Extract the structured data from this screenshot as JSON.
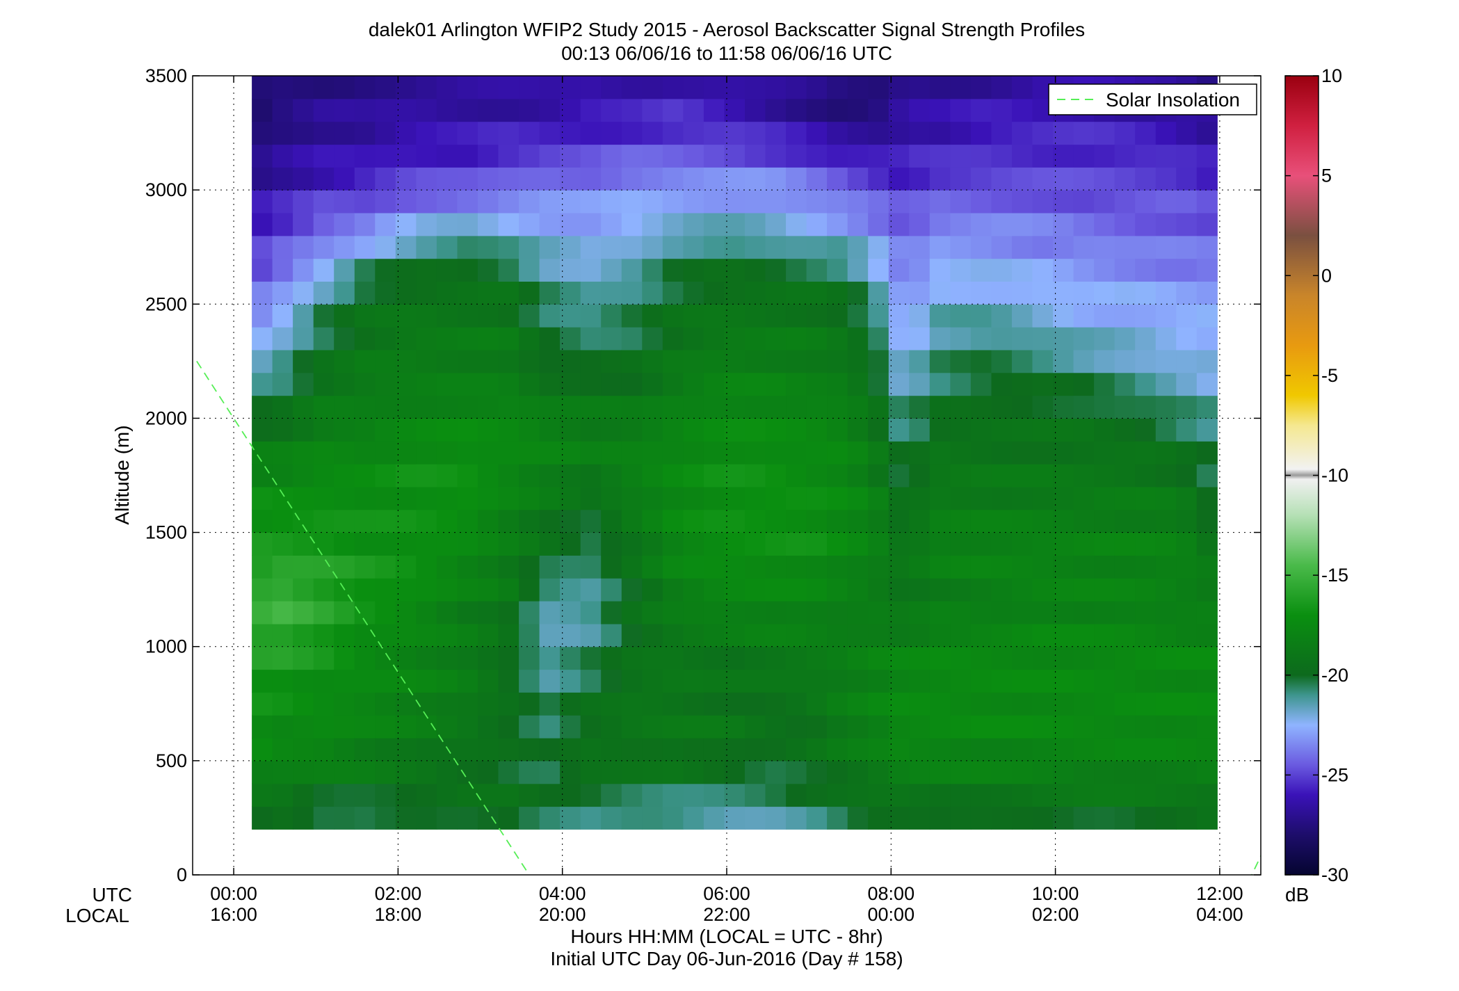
{
  "chart_data": {
    "type": "heatmap",
    "title": "dalek01 Arlington WFIP2 Study 2015 - Aerosol Backscatter Signal Strength Profiles",
    "subtitle": "00:13 06/06/16 to 11:58 06/06/16  UTC",
    "xlabel": "Hours HH:MM  (LOCAL = UTC - 8hr)",
    "xlabel2": "Initial UTC Day 06-Jun-2016 (Day # 158)",
    "ylabel": "Altitude (m)",
    "xrow_names": [
      "UTC",
      "LOCAL"
    ],
    "x_range_hours": [
      -0.5,
      12.5
    ],
    "ylim": [
      0,
      3500
    ],
    "x_ticks": [
      {
        "hour": 0,
        "utc": "00:00",
        "local": "16:00"
      },
      {
        "hour": 2,
        "utc": "02:00",
        "local": "18:00"
      },
      {
        "hour": 4,
        "utc": "04:00",
        "local": "20:00"
      },
      {
        "hour": 6,
        "utc": "06:00",
        "local": "22:00"
      },
      {
        "hour": 8,
        "utc": "08:00",
        "local": "00:00"
      },
      {
        "hour": 10,
        "utc": "10:00",
        "local": "02:00"
      },
      {
        "hour": 12,
        "utc": "12:00",
        "local": "04:00"
      }
    ],
    "y_ticks": [
      0,
      500,
      1000,
      1500,
      2000,
      2500,
      3000,
      3500
    ],
    "grid": true,
    "legend": {
      "position": "top-right",
      "entries": [
        {
          "name": "Solar Insolation",
          "color": "#55ee55",
          "style": "dashed"
        }
      ]
    },
    "solar_insolation_lines": [
      {
        "x_hours": [
          -0.45,
          3.65
        ],
        "y_m": [
          2250,
          -30
        ]
      },
      {
        "x_hours": [
          12.35,
          12.55
        ],
        "y_m": [
          -30,
          120
        ]
      }
    ],
    "colorbar": {
      "label": "dB",
      "range": [
        -30,
        10
      ],
      "ticks": [
        10,
        5,
        0,
        -5,
        -10,
        -15,
        -20,
        -25,
        -30
      ],
      "stops": [
        {
          "v": -30,
          "c": "#050530"
        },
        {
          "v": -28,
          "c": "#1d0d6a"
        },
        {
          "v": -26,
          "c": "#3a12b8"
        },
        {
          "v": -24.5,
          "c": "#6a5ae0"
        },
        {
          "v": -22.5,
          "c": "#8fb4ff"
        },
        {
          "v": -21,
          "c": "#3e958e"
        },
        {
          "v": -20,
          "c": "#0d6a1d"
        },
        {
          "v": -17,
          "c": "#0a8f10"
        },
        {
          "v": -14.5,
          "c": "#4aba4a"
        },
        {
          "v": -12,
          "c": "#b5e0b5"
        },
        {
          "v": -10.2,
          "c": "#f0f0f0"
        },
        {
          "v": -10,
          "c": "#9a9a9a"
        },
        {
          "v": -9.7,
          "c": "#f2f2f2"
        },
        {
          "v": -7.5,
          "c": "#f5e890"
        },
        {
          "v": -6,
          "c": "#f0c800"
        },
        {
          "v": -3.5,
          "c": "#e89a10"
        },
        {
          "v": -1,
          "c": "#c9852a"
        },
        {
          "v": 2,
          "c": "#7a5040"
        },
        {
          "v": 5,
          "c": "#e8507a"
        },
        {
          "v": 7.5,
          "c": "#d02040"
        },
        {
          "v": 10,
          "c": "#9a0010"
        }
      ]
    },
    "grid_data": {
      "x_start_hours": 0.22,
      "x_end_hours": 11.97,
      "y_start_m": 200,
      "y_end_m": 3500,
      "keyframes_hours": [
        0.22,
        0.6,
        1.1,
        1.6,
        2.2,
        2.8,
        3.3,
        3.8,
        4.3,
        4.9,
        5.4,
        6.0,
        6.5,
        7.0,
        7.4,
        7.8,
        8.0,
        8.2,
        8.6,
        9.2,
        9.8,
        10.4,
        11.0,
        11.5,
        11.97
      ],
      "keyframes_m": [
        200,
        300,
        400,
        500,
        650,
        800,
        1000,
        1150,
        1300,
        1450,
        1600,
        1800,
        2000,
        2150,
        2300,
        2450,
        2600,
        2750,
        2900,
        3050,
        3200,
        3350,
        3500
      ],
      "values_db": [
        [
          -20.5,
          -20.0,
          -21.0,
          -21.0,
          -20.0,
          -20.0,
          -19.5,
          -20.5,
          -21.5,
          -21.5,
          -21.5,
          -22.0,
          -21.5,
          -21.0,
          -20.5,
          -20.0,
          -20.5,
          -20.5,
          -21.0,
          -20.5,
          -20.0,
          -20.0,
          -20.0,
          -20.0,
          -19.5
        ],
        [
          -19.5,
          -19.5,
          -20.5,
          -20.5,
          -20.0,
          -19.5,
          -19.5,
          -20.5,
          -21.0,
          -21.0,
          -21.0,
          -21.0,
          -21.0,
          -20.5,
          -20.0,
          -19.5,
          -19.5,
          -19.5,
          -19.5,
          -19.5,
          -19.5,
          -19.5,
          -19.5,
          -19.5,
          -19.5
        ],
        [
          -18.5,
          -18.5,
          -19.0,
          -19.0,
          -19.5,
          -19.5,
          -19.5,
          -20.0,
          -19.0,
          -19.5,
          -20.0,
          -20.5,
          -20.5,
          -20.0,
          -19.5,
          -19.0,
          -18.5,
          -18.5,
          -18.5,
          -18.5,
          -18.5,
          -18.5,
          -18.5,
          -18.5,
          -18.5
        ],
        [
          -17.5,
          -18.0,
          -18.0,
          -18.5,
          -19.0,
          -19.5,
          -20.0,
          -20.5,
          -19.5,
          -19.5,
          -19.0,
          -19.5,
          -20.0,
          -19.5,
          -19.0,
          -18.5,
          -18.0,
          -18.0,
          -18.0,
          -18.0,
          -18.0,
          -18.0,
          -18.0,
          -18.0,
          -18.0
        ],
        [
          -17.0,
          -17.5,
          -17.5,
          -18.0,
          -18.5,
          -19.0,
          -19.5,
          -20.5,
          -19.5,
          -19.0,
          -19.0,
          -19.0,
          -19.5,
          -19.5,
          -18.5,
          -18.0,
          -17.5,
          -17.5,
          -17.5,
          -17.5,
          -17.5,
          -17.5,
          -17.5,
          -17.5,
          -17.5
        ],
        [
          -17.0,
          -17.0,
          -17.5,
          -17.5,
          -18.0,
          -18.5,
          -19.5,
          -21.0,
          -20.0,
          -19.0,
          -19.0,
          -19.5,
          -19.5,
          -19.0,
          -18.5,
          -18.0,
          -17.5,
          -17.5,
          -17.5,
          -17.5,
          -17.5,
          -17.5,
          -17.5,
          -17.5,
          -17.5
        ],
        [
          -16.0,
          -16.0,
          -16.5,
          -17.5,
          -18.0,
          -18.5,
          -19.5,
          -21.5,
          -21.0,
          -19.5,
          -19.0,
          -19.0,
          -18.5,
          -18.5,
          -18.5,
          -18.0,
          -18.0,
          -18.0,
          -17.5,
          -17.5,
          -17.5,
          -17.5,
          -17.5,
          -17.5,
          -17.5
        ],
        [
          -15.5,
          -15.0,
          -16.0,
          -17.0,
          -17.5,
          -18.5,
          -19.0,
          -21.5,
          -21.5,
          -19.5,
          -18.5,
          -18.0,
          -18.0,
          -18.0,
          -18.5,
          -18.5,
          -19.0,
          -19.0,
          -18.5,
          -18.5,
          -18.0,
          -18.0,
          -18.0,
          -18.5,
          -18.5
        ],
        [
          -16.0,
          -15.5,
          -16.0,
          -16.5,
          -17.0,
          -18.0,
          -18.5,
          -20.5,
          -21.0,
          -19.5,
          -18.0,
          -17.5,
          -17.5,
          -17.5,
          -18.0,
          -18.5,
          -19.0,
          -19.0,
          -18.5,
          -18.0,
          -18.0,
          -18.0,
          -18.0,
          -18.0,
          -18.5
        ],
        [
          -16.5,
          -16.5,
          -16.5,
          -17.0,
          -17.0,
          -17.5,
          -18.5,
          -19.5,
          -20.5,
          -19.0,
          -17.5,
          -17.0,
          -17.0,
          -17.0,
          -17.5,
          -18.0,
          -19.0,
          -19.0,
          -18.0,
          -18.0,
          -18.0,
          -18.0,
          -18.0,
          -18.0,
          -19.5
        ],
        [
          -17.0,
          -17.0,
          -17.0,
          -17.0,
          -17.0,
          -17.0,
          -18.0,
          -19.0,
          -20.0,
          -18.5,
          -17.5,
          -17.0,
          -17.0,
          -17.0,
          -17.5,
          -18.0,
          -19.5,
          -19.5,
          -18.5,
          -18.5,
          -18.5,
          -18.5,
          -18.5,
          -18.5,
          -20.5
        ],
        [
          -18.0,
          -18.0,
          -17.5,
          -17.5,
          -17.0,
          -17.0,
          -17.5,
          -18.0,
          -18.5,
          -18.0,
          -17.5,
          -17.0,
          -17.0,
          -17.5,
          -17.5,
          -18.5,
          -20.0,
          -20.0,
          -19.0,
          -19.0,
          -19.0,
          -19.0,
          -19.0,
          -19.5,
          -20.5
        ],
        [
          -20.0,
          -19.5,
          -18.5,
          -18.5,
          -18.0,
          -17.5,
          -17.5,
          -18.0,
          -18.5,
          -18.5,
          -18.0,
          -17.5,
          -17.5,
          -17.5,
          -18.0,
          -19.0,
          -20.5,
          -21.0,
          -19.5,
          -19.5,
          -19.5,
          -19.5,
          -20.0,
          -20.5,
          -21.0
        ],
        [
          -21.0,
          -20.5,
          -19.0,
          -18.5,
          -18.5,
          -18.5,
          -18.5,
          -19.5,
          -19.5,
          -19.5,
          -18.5,
          -18.0,
          -18.0,
          -18.5,
          -18.5,
          -19.5,
          -21.5,
          -21.5,
          -20.5,
          -20.0,
          -20.0,
          -20.5,
          -21.0,
          -21.5,
          -22.0
        ],
        [
          -22.5,
          -21.5,
          -20.0,
          -19.0,
          -18.5,
          -18.5,
          -18.5,
          -20.0,
          -20.5,
          -20.0,
          -19.0,
          -18.5,
          -18.5,
          -18.5,
          -19.0,
          -20.0,
          -22.0,
          -22.5,
          -21.0,
          -20.5,
          -21.0,
          -21.5,
          -22.0,
          -22.5,
          -22.5
        ],
        [
          -23.5,
          -22.5,
          -20.5,
          -19.5,
          -19.0,
          -19.0,
          -19.0,
          -20.5,
          -21.0,
          -20.5,
          -19.5,
          -19.0,
          -19.0,
          -19.0,
          -19.5,
          -20.5,
          -22.5,
          -23.0,
          -21.5,
          -21.5,
          -22.0,
          -22.5,
          -22.5,
          -22.5,
          -22.5
        ],
        [
          -24.5,
          -23.5,
          -22.0,
          -20.0,
          -19.5,
          -19.5,
          -19.5,
          -21.0,
          -21.5,
          -21.0,
          -20.0,
          -19.5,
          -19.5,
          -19.5,
          -20.0,
          -21.5,
          -23.0,
          -23.5,
          -22.5,
          -22.5,
          -22.5,
          -23.0,
          -23.0,
          -23.5,
          -23.5
        ],
        [
          -25.5,
          -24.5,
          -23.5,
          -22.5,
          -21.0,
          -20.5,
          -21.0,
          -22.0,
          -22.5,
          -22.0,
          -21.0,
          -20.5,
          -21.0,
          -21.5,
          -21.5,
          -22.5,
          -23.5,
          -24.0,
          -23.0,
          -23.0,
          -23.5,
          -23.5,
          -24.0,
          -24.0,
          -24.0
        ],
        [
          -26.0,
          -25.5,
          -24.5,
          -24.5,
          -23.5,
          -23.0,
          -23.0,
          -23.0,
          -23.0,
          -22.5,
          -22.5,
          -22.5,
          -22.5,
          -23.0,
          -23.5,
          -24.0,
          -24.5,
          -24.5,
          -24.0,
          -24.0,
          -24.0,
          -24.5,
          -24.5,
          -24.5,
          -25.0
        ],
        [
          -27.0,
          -26.5,
          -26.0,
          -25.5,
          -25.0,
          -25.0,
          -24.5,
          -24.0,
          -24.0,
          -23.5,
          -23.5,
          -23.5,
          -23.5,
          -24.0,
          -24.5,
          -25.0,
          -25.5,
          -25.5,
          -25.0,
          -25.0,
          -25.0,
          -25.0,
          -25.0,
          -25.0,
          -25.5
        ],
        [
          -27.5,
          -27.0,
          -26.5,
          -26.5,
          -26.0,
          -26.0,
          -25.5,
          -25.5,
          -25.5,
          -25.0,
          -25.0,
          -25.0,
          -25.5,
          -26.0,
          -26.5,
          -26.5,
          -26.5,
          -26.0,
          -26.0,
          -25.5,
          -25.5,
          -25.5,
          -25.5,
          -26.0,
          -26.5
        ],
        [
          -28.0,
          -27.5,
          -27.0,
          -27.0,
          -26.5,
          -26.5,
          -26.5,
          -26.5,
          -26.0,
          -26.0,
          -25.5,
          -26.0,
          -26.5,
          -27.0,
          -27.5,
          -27.5,
          -27.0,
          -26.5,
          -26.5,
          -26.0,
          -26.0,
          -26.0,
          -26.5,
          -26.5,
          -27.0
        ],
        [
          -28.0,
          -27.5,
          -27.5,
          -27.0,
          -27.0,
          -27.0,
          -27.0,
          -27.0,
          -26.5,
          -26.5,
          -26.5,
          -26.5,
          -27.0,
          -27.5,
          -28.0,
          -28.0,
          -27.5,
          -27.0,
          -27.0,
          -27.0,
          -26.5,
          -26.5,
          -27.0,
          -27.0,
          -27.5
        ]
      ]
    }
  }
}
